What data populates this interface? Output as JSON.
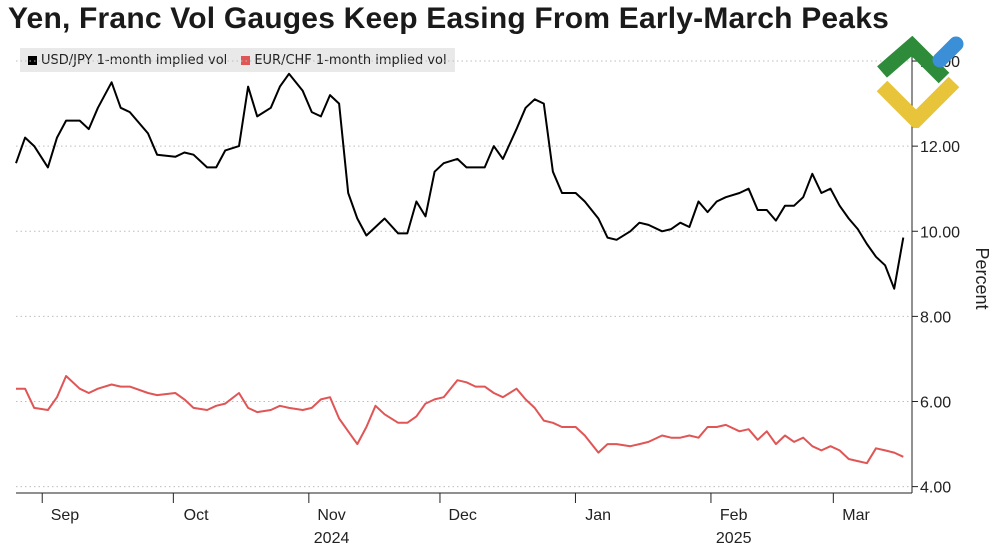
{
  "title": "Yen, Franc Vol Gauges Keep Easing From Early-March Peaks",
  "logo": {
    "icon": "stylized-check-arrow-logo",
    "colors": [
      "#2e8b3a",
      "#e8c43a",
      "#3a8fd6"
    ]
  },
  "chart_data": {
    "type": "line",
    "ylabel": "Percent",
    "ylim": [
      3.85,
      14.4
    ],
    "yticks": [
      4,
      6,
      8,
      10,
      12,
      14
    ],
    "ytick_labels": [
      "4.00",
      "6.00",
      "8.00",
      "10.00",
      "12.00",
      "14.00"
    ],
    "grid": true,
    "legend_position": "top-left",
    "x_start": "2024-08-26",
    "x_end": "2025-03-19",
    "x_month_labels": [
      {
        "label": "Sep",
        "date": "2024-09-03",
        "year": "",
        "tick": "2024-09-01"
      },
      {
        "label": "Oct",
        "date": "2024-10-03",
        "year": "",
        "tick": "2024-10-01"
      },
      {
        "label": "Nov",
        "date": "2024-11-03",
        "year": "2024",
        "tick": "2024-11-01"
      },
      {
        "label": "Dec",
        "date": "2024-12-03",
        "year": "",
        "tick": "2024-12-01"
      },
      {
        "label": "Jan",
        "date": "2025-01-03",
        "year": "",
        "tick": "2025-01-01"
      },
      {
        "label": "Feb",
        "date": "2025-02-03",
        "year": "2025",
        "tick": "2025-02-01"
      },
      {
        "label": "Mar",
        "date": "2025-03-03",
        "year": "",
        "tick": "2025-03-01"
      }
    ],
    "series": [
      {
        "name": "USD/JPY 1-month implied vol",
        "color": "#000000",
        "points": [
          [
            "2024-08-26",
            11.6
          ],
          [
            "2024-08-28",
            12.2
          ],
          [
            "2024-08-30",
            12.0
          ],
          [
            "2024-09-02",
            11.5
          ],
          [
            "2024-09-04",
            12.2
          ],
          [
            "2024-09-06",
            12.6
          ],
          [
            "2024-09-09",
            12.6
          ],
          [
            "2024-09-11",
            12.4
          ],
          [
            "2024-09-13",
            12.9
          ],
          [
            "2024-09-16",
            13.5
          ],
          [
            "2024-09-18",
            12.9
          ],
          [
            "2024-09-20",
            12.8
          ],
          [
            "2024-09-24",
            12.3
          ],
          [
            "2024-09-26",
            11.8
          ],
          [
            "2024-09-30",
            11.75
          ],
          [
            "2024-10-02",
            11.85
          ],
          [
            "2024-10-04",
            11.8
          ],
          [
            "2024-10-07",
            11.5
          ],
          [
            "2024-10-09",
            11.5
          ],
          [
            "2024-10-11",
            11.9
          ],
          [
            "2024-10-14",
            12.0
          ],
          [
            "2024-10-16",
            13.4
          ],
          [
            "2024-10-18",
            12.7
          ],
          [
            "2024-10-21",
            12.9
          ],
          [
            "2024-10-23",
            13.4
          ],
          [
            "2024-10-25",
            13.7
          ],
          [
            "2024-10-28",
            13.3
          ],
          [
            "2024-10-30",
            12.8
          ],
          [
            "2024-11-01",
            12.7
          ],
          [
            "2024-11-03",
            13.2
          ],
          [
            "2024-11-05",
            13.0
          ],
          [
            "2024-11-07",
            10.9
          ],
          [
            "2024-11-09",
            10.3
          ],
          [
            "2024-11-11",
            9.9
          ],
          [
            "2024-11-13",
            10.1
          ],
          [
            "2024-11-15",
            10.3
          ],
          [
            "2024-11-18",
            9.95
          ],
          [
            "2024-11-20",
            9.95
          ],
          [
            "2024-11-22",
            10.7
          ],
          [
            "2024-11-24",
            10.35
          ],
          [
            "2024-11-26",
            11.4
          ],
          [
            "2024-11-28",
            11.6
          ],
          [
            "2024-12-01",
            11.7
          ],
          [
            "2024-12-03",
            11.5
          ],
          [
            "2024-12-05",
            11.5
          ],
          [
            "2024-12-07",
            11.5
          ],
          [
            "2024-12-09",
            12.0
          ],
          [
            "2024-12-11",
            11.7
          ],
          [
            "2024-12-14",
            12.4
          ],
          [
            "2024-12-16",
            12.9
          ],
          [
            "2024-12-18",
            13.1
          ],
          [
            "2024-12-20",
            13.0
          ],
          [
            "2024-12-22",
            11.4
          ],
          [
            "2024-12-24",
            10.9
          ],
          [
            "2024-12-27",
            10.9
          ],
          [
            "2024-12-29",
            10.7
          ],
          [
            "2025-01-01",
            10.3
          ],
          [
            "2025-01-03",
            9.85
          ],
          [
            "2025-01-05",
            9.8
          ],
          [
            "2025-01-08",
            10.0
          ],
          [
            "2025-01-10",
            10.2
          ],
          [
            "2025-01-12",
            10.15
          ],
          [
            "2025-01-15",
            10.0
          ],
          [
            "2025-01-17",
            10.05
          ],
          [
            "2025-01-19",
            10.2
          ],
          [
            "2025-01-21",
            10.1
          ],
          [
            "2025-01-23",
            10.7
          ],
          [
            "2025-01-25",
            10.45
          ],
          [
            "2025-01-27",
            10.7
          ],
          [
            "2025-01-29",
            10.8
          ],
          [
            "2025-02-01",
            10.9
          ],
          [
            "2025-02-03",
            11.0
          ],
          [
            "2025-02-05",
            10.5
          ],
          [
            "2025-02-07",
            10.5
          ],
          [
            "2025-02-09",
            10.25
          ],
          [
            "2025-02-11",
            10.6
          ],
          [
            "2025-02-13",
            10.6
          ],
          [
            "2025-02-15",
            10.8
          ],
          [
            "2025-02-17",
            11.35
          ],
          [
            "2025-02-19",
            10.9
          ],
          [
            "2025-02-21",
            11.0
          ],
          [
            "2025-02-23",
            10.6
          ],
          [
            "2025-02-25",
            10.3
          ],
          [
            "2025-02-27",
            10.05
          ],
          [
            "2025-03-01",
            9.7
          ],
          [
            "2025-03-03",
            9.4
          ],
          [
            "2025-03-05",
            9.2
          ],
          [
            "2025-03-07",
            8.65
          ],
          [
            "2025-03-09",
            9.85
          ]
        ]
      },
      {
        "name": "EUR/CHF 1-month implied vol",
        "color": "#e05555",
        "points": []
      }
    ]
  }
}
